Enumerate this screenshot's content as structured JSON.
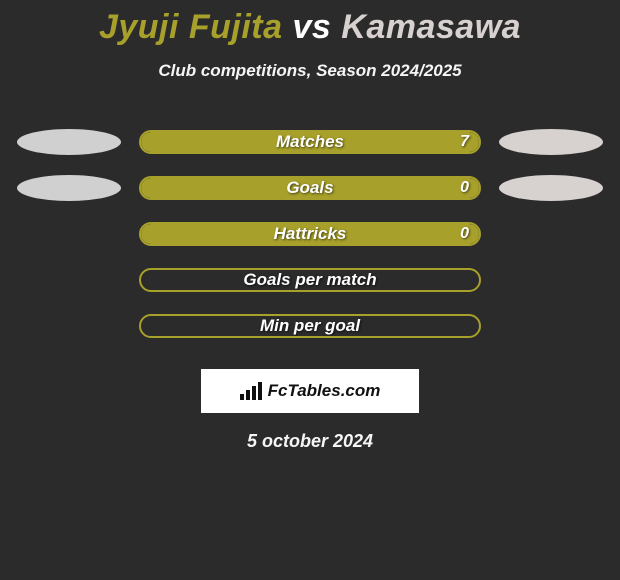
{
  "title": {
    "player_a": {
      "name": "Jyuji Fujita",
      "color": "#a7a02b"
    },
    "separator": {
      "text": "vs",
      "color": "#ffffff"
    },
    "player_b": {
      "name": "Kamasawa",
      "color": "#d7d1d0"
    }
  },
  "subtitle": "Club competitions, Season 2024/2025",
  "stat_bar_style": {
    "border_color": "#a7a02b",
    "fill_color": "#a7a02b",
    "label_color": "#ffffff"
  },
  "ovals": {
    "left_color": "#d0d0d0",
    "right_color": "#d7d1d0"
  },
  "stats": [
    {
      "label": "Matches",
      "value": "7",
      "fill_pct": 100,
      "show_left_oval": true,
      "show_right_oval": true,
      "show_value": true
    },
    {
      "label": "Goals",
      "value": "0",
      "fill_pct": 100,
      "show_left_oval": true,
      "show_right_oval": true,
      "show_value": true
    },
    {
      "label": "Hattricks",
      "value": "0",
      "fill_pct": 100,
      "show_left_oval": false,
      "show_right_oval": false,
      "show_value": true
    },
    {
      "label": "Goals per match",
      "value": "",
      "fill_pct": 0,
      "show_left_oval": false,
      "show_right_oval": false,
      "show_value": false
    },
    {
      "label": "Min per goal",
      "value": "",
      "fill_pct": 0,
      "show_left_oval": false,
      "show_right_oval": false,
      "show_value": false
    }
  ],
  "badge": {
    "text": "FcTables.com",
    "bg": "#ffffff",
    "text_color": "#111111"
  },
  "date": "5 october 2024",
  "background_color": "#2b2b2b"
}
